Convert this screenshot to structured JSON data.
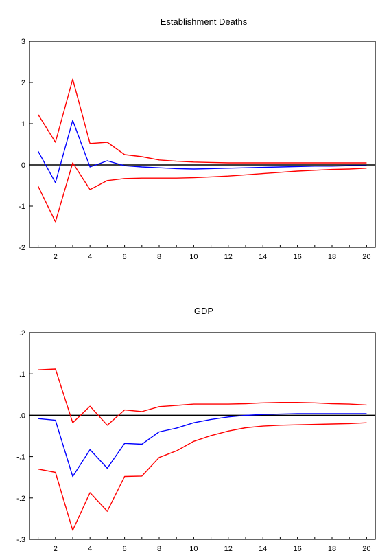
{
  "chart_data": [
    {
      "type": "line",
      "title": "Establishment Deaths",
      "xlabel": "",
      "ylabel": "",
      "x": [
        1,
        2,
        3,
        4,
        5,
        6,
        7,
        8,
        9,
        10,
        11,
        12,
        13,
        14,
        15,
        16,
        17,
        18,
        19,
        20
      ],
      "xticks": [
        2,
        4,
        6,
        8,
        10,
        12,
        14,
        16,
        18,
        20
      ],
      "yticks": [
        -2,
        -1,
        0,
        1,
        2,
        3
      ],
      "ytick_labels": [
        "-2",
        "-1",
        "0",
        "1",
        "2",
        "3"
      ],
      "ylim": [
        -2,
        3
      ],
      "xlim": [
        0.5,
        20.5
      ],
      "grid": false,
      "zero_line": true,
      "series": [
        {
          "color": "#ff0000",
          "values": [
            1.22,
            0.55,
            2.08,
            0.52,
            0.55,
            0.25,
            0.2,
            0.12,
            0.09,
            0.07,
            0.06,
            0.05,
            0.05,
            0.05,
            0.05,
            0.05,
            0.05,
            0.05,
            0.05,
            0.05
          ]
        },
        {
          "color": "#0000ff",
          "values": [
            0.33,
            -0.43,
            1.08,
            -0.05,
            0.1,
            -0.02,
            -0.05,
            -0.07,
            -0.09,
            -0.1,
            -0.09,
            -0.08,
            -0.07,
            -0.06,
            -0.05,
            -0.04,
            -0.03,
            -0.03,
            -0.02,
            -0.02
          ]
        },
        {
          "color": "#ff0000",
          "values": [
            -0.52,
            -1.38,
            0.05,
            -0.6,
            -0.38,
            -0.33,
            -0.32,
            -0.32,
            -0.32,
            -0.31,
            -0.29,
            -0.27,
            -0.24,
            -0.21,
            -0.18,
            -0.15,
            -0.13,
            -0.11,
            -0.1,
            -0.08
          ]
        }
      ]
    },
    {
      "type": "line",
      "title": "GDP",
      "xlabel": "",
      "ylabel": "",
      "x": [
        1,
        2,
        3,
        4,
        5,
        6,
        7,
        8,
        9,
        10,
        11,
        12,
        13,
        14,
        15,
        16,
        17,
        18,
        19,
        20
      ],
      "xticks": [
        2,
        4,
        6,
        8,
        10,
        12,
        14,
        16,
        18,
        20
      ],
      "yticks": [
        -0.3,
        -0.2,
        -0.1,
        0.0,
        0.1,
        0.2
      ],
      "ytick_labels": [
        "-.3",
        "-.2",
        "-.1",
        ".0",
        ".1",
        ".2"
      ],
      "ylim": [
        -0.3,
        0.2
      ],
      "xlim": [
        0.5,
        20.5
      ],
      "grid": false,
      "zero_line": true,
      "series": [
        {
          "color": "#ff0000",
          "values": [
            0.11,
            0.112,
            -0.018,
            0.022,
            -0.024,
            0.013,
            0.009,
            0.021,
            0.024,
            0.027,
            0.027,
            0.027,
            0.028,
            0.03,
            0.031,
            0.031,
            0.03,
            0.028,
            0.027,
            0.025
          ]
        },
        {
          "color": "#0000ff",
          "values": [
            -0.008,
            -0.012,
            -0.148,
            -0.083,
            -0.128,
            -0.068,
            -0.07,
            -0.04,
            -0.031,
            -0.018,
            -0.01,
            -0.004,
            0.0,
            0.002,
            0.003,
            0.004,
            0.004,
            0.004,
            0.004,
            0.004
          ]
        },
        {
          "color": "#ff0000",
          "values": [
            -0.13,
            -0.138,
            -0.278,
            -0.187,
            -0.232,
            -0.148,
            -0.147,
            -0.102,
            -0.086,
            -0.063,
            -0.049,
            -0.038,
            -0.03,
            -0.026,
            -0.024,
            -0.023,
            -0.022,
            -0.021,
            -0.02,
            -0.018
          ]
        }
      ]
    }
  ]
}
